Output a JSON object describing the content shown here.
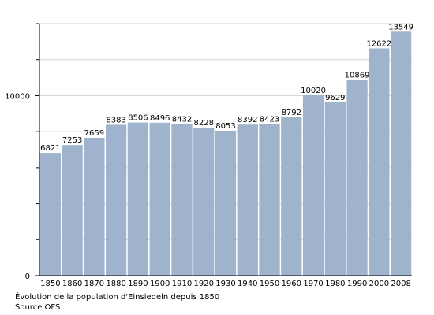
{
  "chart_data": {
    "type": "bar",
    "categories": [
      "1850",
      "1860",
      "1870",
      "1880",
      "1890",
      "1900",
      "1910",
      "1920",
      "1930",
      "1940",
      "1950",
      "1960",
      "1970",
      "1980",
      "1990",
      "2000",
      "2008"
    ],
    "values": [
      6821,
      7253,
      7659,
      8383,
      8506,
      8496,
      8432,
      8228,
      8053,
      8392,
      8423,
      8792,
      10020,
      9629,
      10869,
      12622,
      13549
    ],
    "ylim": [
      0,
      14000
    ],
    "yticks": [
      0,
      10000
    ],
    "minor_yticks": [
      2000,
      4000,
      6000,
      8000,
      12000,
      14000
    ],
    "grid": true,
    "title": "",
    "xlabel": "",
    "ylabel": "",
    "bar_color": "#9fb3cc"
  },
  "caption": {
    "line1": "Évolution de la population d'Einsiedeln depuis 1850",
    "line2": "Source OFS"
  }
}
